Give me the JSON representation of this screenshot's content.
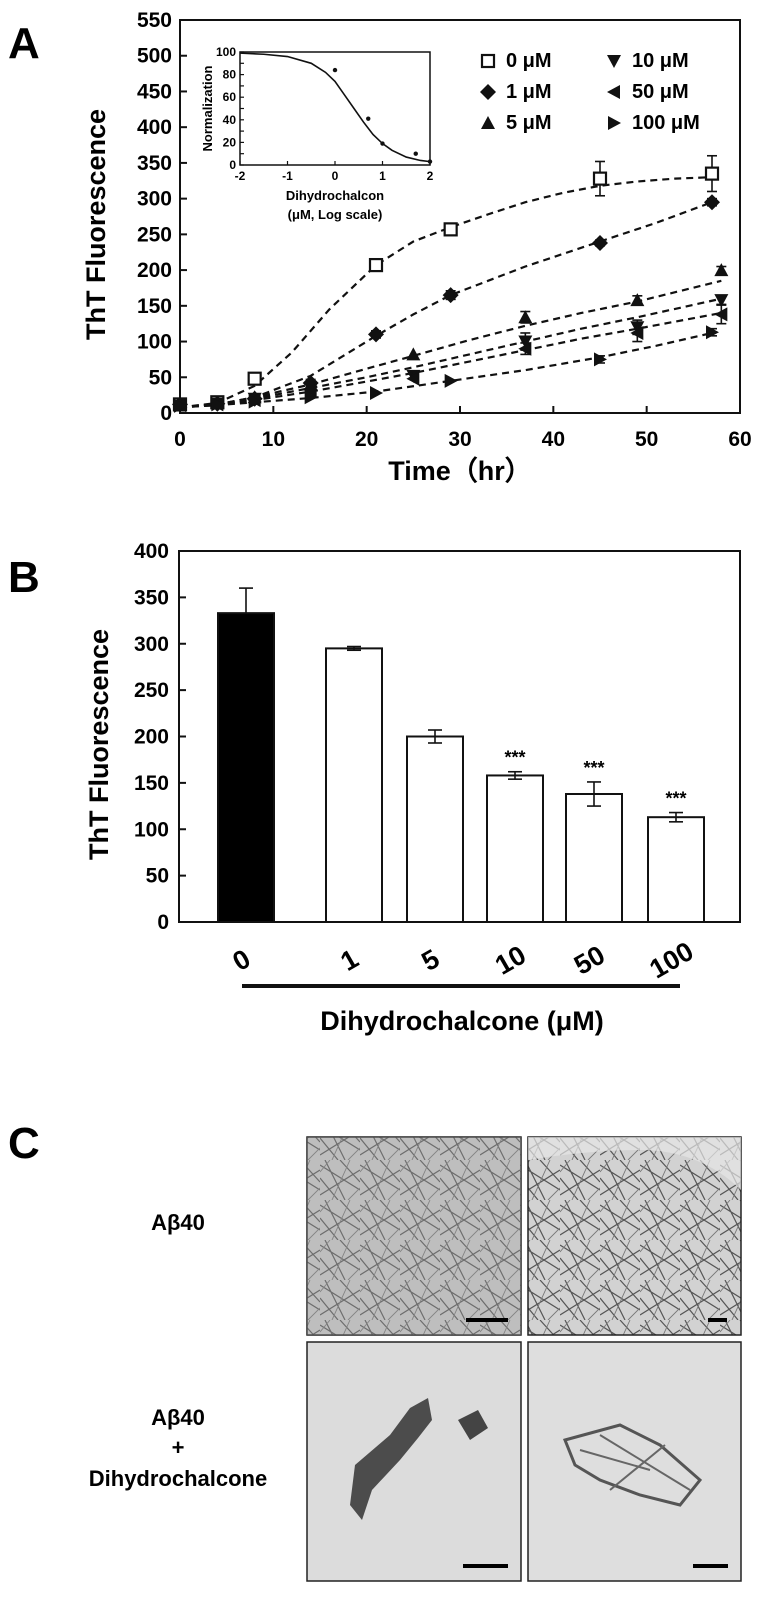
{
  "panels": {
    "a": "A",
    "b": "B",
    "c": "C"
  },
  "colors": {
    "ink": "#111111",
    "bar_fill_first": "#000000",
    "bar_fill_rest": "#ffffff"
  },
  "chart_data": [
    {
      "type": "line",
      "title": "",
      "xlabel": "Time（hr）",
      "ylabel": "ThT Fluorescence",
      "xlim": [
        0,
        60
      ],
      "ylim": [
        0,
        550
      ],
      "xticks": [
        0,
        10,
        20,
        30,
        40,
        50,
        60
      ],
      "yticks": [
        0,
        50,
        100,
        150,
        200,
        250,
        300,
        350,
        400,
        450,
        500,
        550
      ],
      "legend_placement": "top-right",
      "series": [
        {
          "name": "0 μM",
          "marker": "open-square",
          "x": [
            0,
            4,
            8,
            21,
            29,
            45,
            57
          ],
          "y": [
            12,
            15,
            48,
            207,
            257,
            328,
            335
          ],
          "err": [
            0,
            0,
            4,
            5,
            8,
            24,
            25
          ],
          "fit_x": [
            0,
            4,
            8,
            12,
            16,
            21,
            25,
            29,
            33,
            37,
            41,
            45,
            49,
            53,
            57
          ],
          "fit_y": [
            8,
            14,
            38,
            85,
            145,
            207,
            240,
            260,
            278,
            295,
            308,
            318,
            324,
            328,
            330
          ]
        },
        {
          "name": "1 μM",
          "marker": "diamond",
          "x": [
            0,
            4,
            8,
            14,
            21,
            29,
            45,
            57
          ],
          "y": [
            12,
            13,
            20,
            42,
            110,
            165,
            238,
            295
          ],
          "err": [
            0,
            0,
            0,
            5,
            5,
            6,
            4,
            5
          ],
          "fit_x": [
            0,
            4,
            8,
            14,
            21,
            25,
            29,
            37,
            45,
            51,
            57
          ],
          "fit_y": [
            8,
            12,
            22,
            52,
            108,
            138,
            165,
            205,
            240,
            266,
            295
          ]
        },
        {
          "name": "5 μM",
          "marker": "triangle-up",
          "x": [
            0,
            4,
            8,
            14,
            25,
            37,
            49,
            58
          ],
          "y": [
            12,
            14,
            22,
            40,
            82,
            134,
            158,
            200
          ],
          "err": [
            0,
            0,
            0,
            0,
            0,
            8,
            6,
            5
          ],
          "fit_x": [
            0,
            4,
            8,
            14,
            20,
            25,
            31,
            37,
            43,
            49,
            58
          ],
          "fit_y": [
            8,
            12,
            22,
            40,
            62,
            80,
            102,
            122,
            140,
            156,
            185
          ]
        },
        {
          "name": "10 μM",
          "marker": "triangle-down",
          "x": [
            0,
            4,
            8,
            14,
            25,
            37,
            49,
            58
          ],
          "y": [
            10,
            13,
            20,
            35,
            52,
            100,
            120,
            158
          ],
          "err": [
            0,
            0,
            0,
            0,
            0,
            12,
            10,
            6
          ],
          "fit_x": [
            0,
            4,
            8,
            14,
            20,
            25,
            31,
            37,
            43,
            49,
            58
          ],
          "fit_y": [
            8,
            12,
            20,
            35,
            50,
            64,
            82,
            100,
            118,
            134,
            160
          ]
        },
        {
          "name": "50 μM",
          "marker": "triangle-left",
          "x": [
            0,
            4,
            8,
            14,
            25,
            37,
            49,
            58
          ],
          "y": [
            11,
            12,
            18,
            32,
            48,
            90,
            112,
            138
          ],
          "err": [
            0,
            0,
            0,
            0,
            0,
            8,
            12,
            13
          ],
          "fit_x": [
            0,
            4,
            8,
            14,
            20,
            25,
            31,
            37,
            43,
            49,
            58
          ],
          "fit_y": [
            8,
            11,
            18,
            30,
            44,
            56,
            72,
            88,
            104,
            118,
            140
          ]
        },
        {
          "name": "100 μM",
          "marker": "triangle-right",
          "x": [
            0,
            4,
            8,
            14,
            21,
            29,
            45,
            57
          ],
          "y": [
            10,
            12,
            16,
            22,
            28,
            45,
            75,
            113
          ],
          "err": [
            0,
            0,
            0,
            0,
            0,
            0,
            5,
            5
          ],
          "fit_x": [
            0,
            4,
            8,
            14,
            21,
            29,
            37,
            45,
            51,
            57
          ],
          "fit_y": [
            8,
            11,
            15,
            21,
            30,
            45,
            60,
            78,
            94,
            112
          ]
        }
      ]
    },
    {
      "type": "line",
      "title": "",
      "xlabel": "Dihydrochalcon",
      "xlabel2": "(μM, Log scale)",
      "ylabel": "Normalization",
      "xlim": [
        -2,
        2
      ],
      "ylim": [
        0,
        100
      ],
      "xticks": [
        -2,
        -1,
        0,
        1,
        2
      ],
      "yticks": [
        0,
        10,
        20,
        30,
        40,
        50,
        60,
        70,
        80,
        90,
        100
      ],
      "points_x": [
        0,
        0.7,
        1,
        1.7,
        2
      ],
      "points_y": [
        84,
        41,
        19,
        10,
        3
      ],
      "fit_x": [
        -2,
        -1.5,
        -1,
        -0.5,
        -0.2,
        0,
        0.2,
        0.4,
        0.6,
        0.8,
        1,
        1.2,
        1.5,
        1.8,
        2
      ],
      "fit_y": [
        99,
        98,
        96,
        90,
        82,
        74,
        62,
        50,
        38,
        27,
        19,
        13,
        7,
        4,
        3
      ]
    },
    {
      "type": "bar",
      "title": "",
      "xlabel": "Dihydrochalcone (μM)",
      "ylabel": "ThT Fluorescence",
      "ylim": [
        0,
        400
      ],
      "yticks": [
        0,
        50,
        100,
        150,
        200,
        250,
        300,
        350,
        400
      ],
      "categories": [
        "0",
        "1",
        "5",
        "10",
        "50",
        "100"
      ],
      "values": [
        333,
        295,
        200,
        158,
        138,
        113
      ],
      "errors": [
        27,
        2,
        7,
        4,
        13,
        5
      ],
      "annotations": [
        "",
        "",
        "",
        "***",
        "***",
        "***"
      ]
    }
  ],
  "panel_c": {
    "row1_label": "Aβ40",
    "row2_label_lines": [
      "Aβ40",
      "+",
      "Dihydrochalcone"
    ],
    "images": [
      "tem-ab40-left",
      "tem-ab40-right",
      "tem-ab40-dihydrochalcone-left",
      "tem-ab40-dihydrochalcone-right"
    ]
  }
}
